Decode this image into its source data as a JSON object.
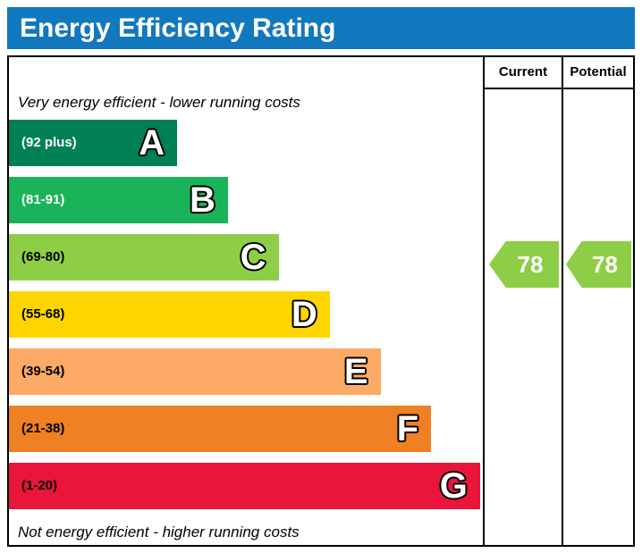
{
  "title": "Energy Efficiency Rating",
  "title_bg": "#1278be",
  "header": {
    "current": "Current",
    "potential": "Potential"
  },
  "captions": {
    "top": "Very energy efficient - lower running costs",
    "bottom": "Not energy efficient - higher running costs"
  },
  "chart_data": {
    "type": "bar",
    "title": "Energy Efficiency Rating",
    "bands": [
      {
        "letter": "A",
        "range": "(92 plus)",
        "min": 92,
        "max": 100,
        "color": "#008054",
        "text_color": "#ffffff",
        "width": "35.5%"
      },
      {
        "letter": "B",
        "range": "(81-91)",
        "min": 81,
        "max": 91,
        "color": "#19b459",
        "text_color": "#ffffff",
        "width": "46.2%"
      },
      {
        "letter": "C",
        "range": "(69-80)",
        "min": 69,
        "max": 80,
        "color": "#8dce46",
        "text_color": "#000000",
        "width": "56.9%"
      },
      {
        "letter": "D",
        "range": "(55-68)",
        "min": 55,
        "max": 68,
        "color": "#ffd500",
        "text_color": "#000000",
        "width": "67.7%"
      },
      {
        "letter": "E",
        "range": "(39-54)",
        "min": 39,
        "max": 54,
        "color": "#fcaa65",
        "text_color": "#000000",
        "width": "78.4%"
      },
      {
        "letter": "F",
        "range": "(21-38)",
        "min": 21,
        "max": 38,
        "color": "#ef8023",
        "text_color": "#000000",
        "width": "89.1%"
      },
      {
        "letter": "G",
        "range": "(1-20)",
        "min": 1,
        "max": 20,
        "color": "#e9153b",
        "text_color": "#000000",
        "width": "99.4%"
      }
    ],
    "current": {
      "value": "78",
      "band": "C",
      "color": "#8dce46"
    },
    "potential": {
      "value": "78",
      "band": "C",
      "color": "#8dce46"
    }
  }
}
